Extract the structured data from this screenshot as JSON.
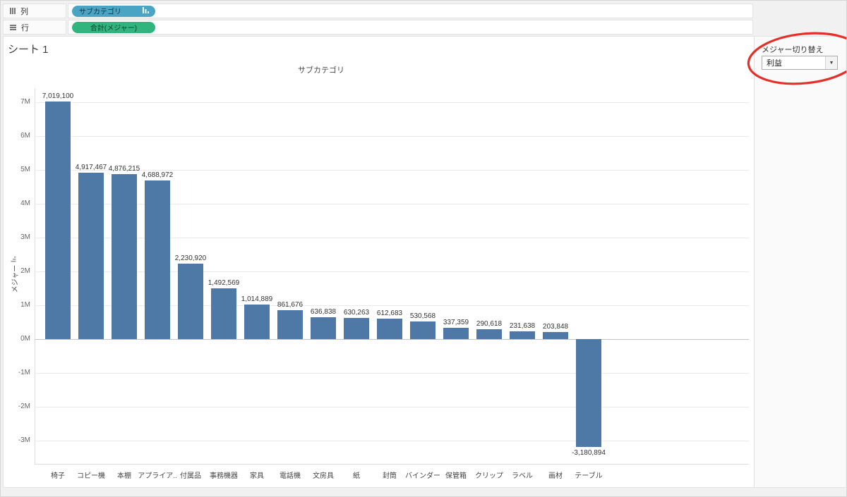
{
  "shelves": {
    "columns": {
      "label": "列",
      "pill": "サブカテゴリ"
    },
    "rows": {
      "label": "行",
      "pill": "合計(メジャー)"
    }
  },
  "sheet_title": "シート 1",
  "parameter": {
    "label": "メジャー切り替え",
    "value": "利益"
  },
  "icons": {
    "dropdown_caret": "▼"
  },
  "colors": {
    "bar": "#4e79a7",
    "dimension_pill": "#4aa5c4",
    "measure_pill": "#2fb57d",
    "annotation": "#e4251f"
  },
  "chart_data": {
    "type": "bar",
    "title": "サブカテゴリ",
    "ylabel": "メジャー",
    "categories": [
      "椅子",
      "コピー機",
      "本棚",
      "アプライア..",
      "付属品",
      "事務機器",
      "家具",
      "電話機",
      "文房具",
      "紙",
      "封筒",
      "バインダー",
      "保管箱",
      "クリップ",
      "ラベル",
      "画材",
      "テーブル"
    ],
    "values": [
      7019100,
      4917467,
      4876215,
      4688972,
      2230920,
      1492569,
      1014889,
      861676,
      636838,
      630263,
      612683,
      530568,
      337359,
      290618,
      231638,
      203848,
      -3180894
    ],
    "value_labels": [
      "7,019,100",
      "4,917,467",
      "4,876,215",
      "4,688,972",
      "2,230,920",
      "1,492,569",
      "1,014,889",
      "861,676",
      "636,838",
      "630,263",
      "612,683",
      "530,568",
      "337,359",
      "290,618",
      "231,638",
      "203,848",
      "-3,180,894"
    ],
    "ytick_values": [
      7000000,
      6000000,
      5000000,
      4000000,
      3000000,
      2000000,
      1000000,
      0,
      -1000000,
      -2000000,
      -3000000
    ],
    "ytick_labels": [
      "7M",
      "6M",
      "5M",
      "4M",
      "3M",
      "2M",
      "1M",
      "0M",
      "-1M",
      "-2M",
      "-3M"
    ],
    "ylim": [
      -3600000,
      7500000
    ],
    "grid": true,
    "legend": "none"
  }
}
